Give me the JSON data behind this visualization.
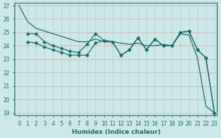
{
  "xlabel": "Humidex (Indice chaleur)",
  "xlim": [
    -0.5,
    23.3
  ],
  "ylim": [
    18.8,
    27.2
  ],
  "yticks": [
    19,
    20,
    21,
    22,
    23,
    24,
    25,
    26,
    27
  ],
  "xticks": [
    0,
    1,
    2,
    3,
    4,
    5,
    6,
    7,
    8,
    9,
    10,
    11,
    12,
    13,
    14,
    15,
    16,
    17,
    18,
    19,
    20,
    21,
    22,
    23
  ],
  "bg_color": "#cce8e8",
  "grid_color_h": "#d4b8b8",
  "grid_color_v": "#b8d4d4",
  "line_color": "#1a6b6b",
  "line1_x": [
    0,
    1,
    2,
    3,
    4,
    5,
    6,
    7,
    8,
    9,
    10,
    11,
    12,
    13,
    14,
    15,
    16,
    17,
    18,
    19,
    20,
    21,
    22,
    23
  ],
  "line1_y": [
    27.0,
    25.8,
    25.3,
    25.1,
    24.9,
    24.7,
    24.5,
    24.3,
    24.3,
    24.5,
    24.3,
    24.3,
    24.2,
    24.1,
    24.2,
    24.0,
    24.0,
    24.1,
    24.0,
    24.9,
    24.8,
    23.1,
    19.5,
    19.0
  ],
  "line2_x": [
    1,
    2,
    3,
    4,
    5,
    6,
    7,
    8,
    9,
    10,
    11,
    12,
    13,
    14,
    15,
    16,
    17,
    18,
    19,
    20,
    21,
    22,
    23
  ],
  "line2_y": [
    24.9,
    24.9,
    24.3,
    24.0,
    23.8,
    23.6,
    23.5,
    24.1,
    24.9,
    24.4,
    24.3,
    23.3,
    23.7,
    24.6,
    23.7,
    24.5,
    24.0,
    24.0,
    25.0,
    25.1,
    23.7,
    23.1,
    19.0
  ],
  "line3_x": [
    1,
    2,
    3,
    4,
    5,
    6,
    7,
    8,
    9,
    10,
    11,
    12,
    13,
    14,
    15,
    16,
    17,
    18,
    19,
    20,
    21,
    22,
    23
  ],
  "line3_y": [
    24.3,
    24.2,
    23.9,
    23.7,
    23.5,
    23.3,
    23.3,
    23.3,
    24.2,
    24.4,
    24.3,
    23.3,
    23.7,
    24.6,
    23.7,
    24.5,
    24.0,
    24.0,
    25.0,
    25.1,
    23.7,
    23.1,
    19.0
  ]
}
